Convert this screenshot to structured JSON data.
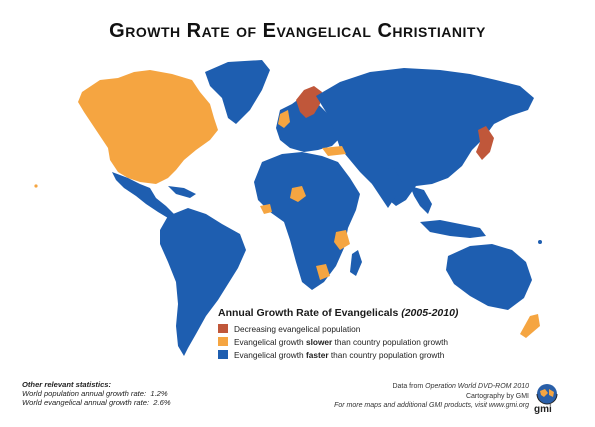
{
  "title": "Growth Rate of Evangelical Christianity",
  "legend": {
    "title_main": "Annual Growth Rate of Evangelicals",
    "title_period": "(2005-2010)",
    "items": [
      {
        "color": "#c0573a",
        "text_before": "Decreasing evangelical population",
        "bold": "",
        "text_after": ""
      },
      {
        "color": "#f5a541",
        "text_before": "Evangelical growth ",
        "bold": "slower",
        "text_after": " than country population growth"
      },
      {
        "color": "#1e5eb0",
        "text_before": "Evangelical growth ",
        "bold": "faster",
        "text_after": " than country population growth"
      }
    ]
  },
  "stats": {
    "heading": "Other relevant statistics:",
    "lines": [
      {
        "label": "World population annual growth rate:",
        "value": "1.2%"
      },
      {
        "label": "World evangelical annual growth rate:",
        "value": "2.6%"
      }
    ]
  },
  "credits": {
    "line1_pre": "Data from ",
    "line1_em": "Operation World DVD-ROM 2010",
    "line2": "Cartography by GMI",
    "line3": "For more maps and additional GMI products, visit www.gmi.org"
  },
  "logo_text": "gmi",
  "colors": {
    "blue": "#1e5eb0",
    "orange": "#f5a541",
    "red": "#c0573a",
    "ocean": "#ffffff"
  }
}
